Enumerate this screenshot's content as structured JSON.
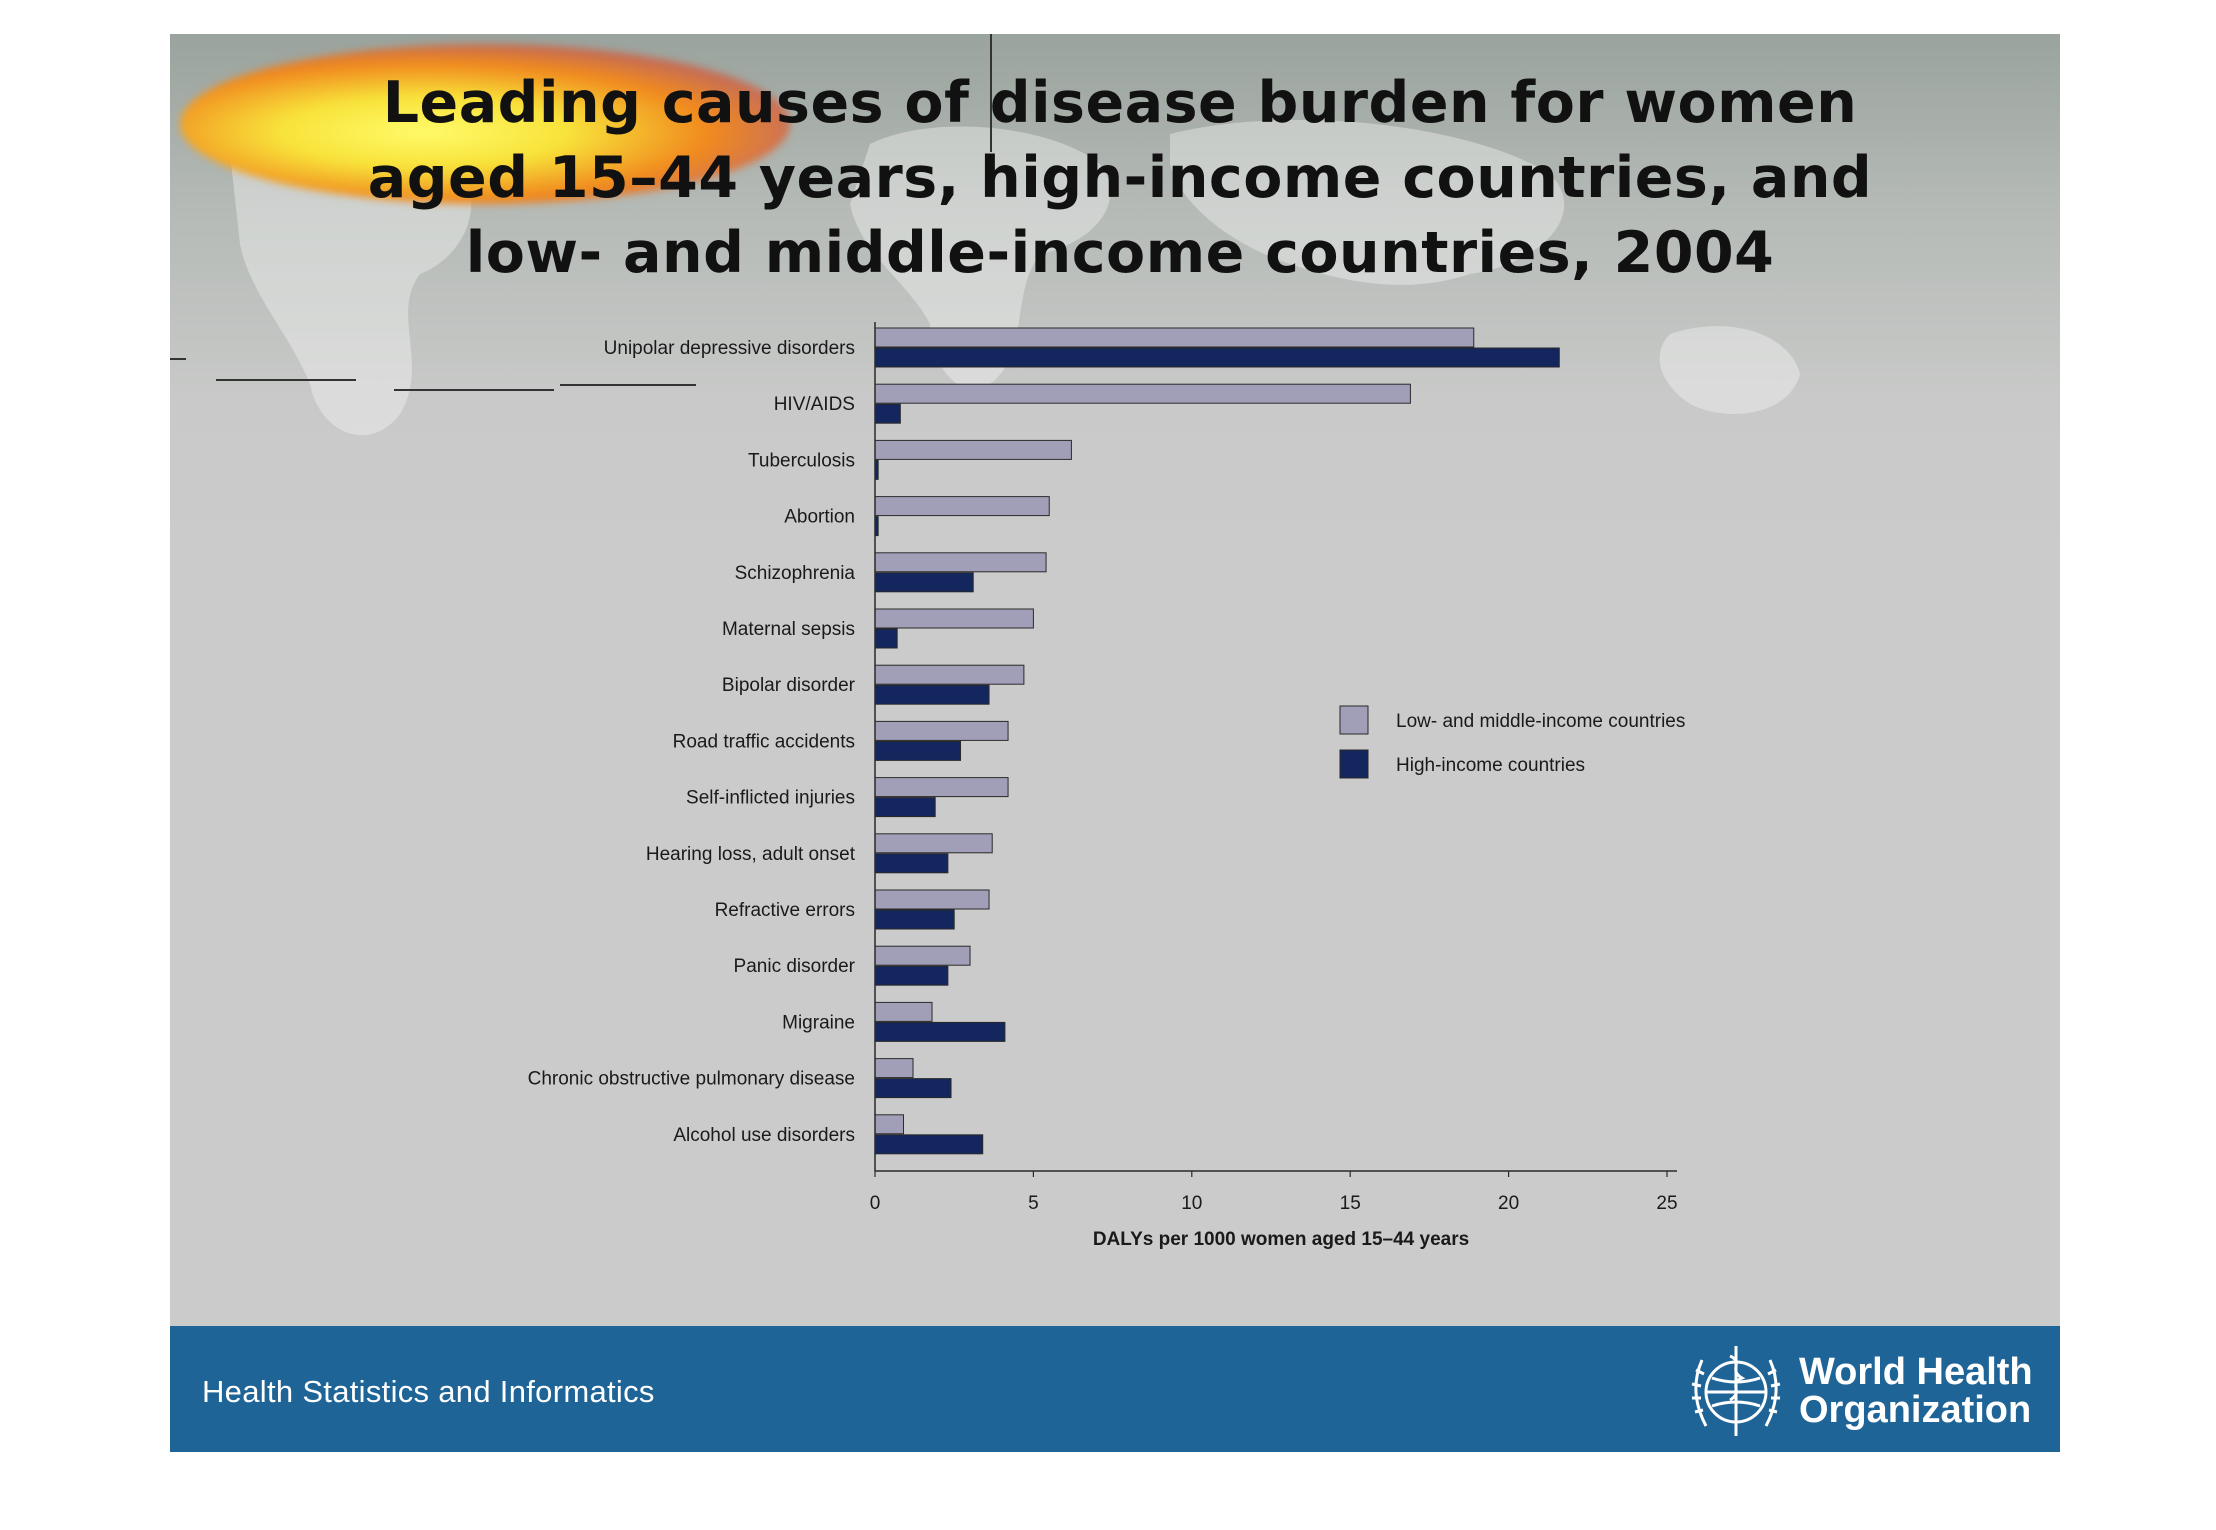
{
  "slide": {
    "title": "Leading causes of disease burden for women aged 15–44 years, high-income countries, and low- and middle-income countries, 2004",
    "footer_text": "Health Statistics and Informatics",
    "logo_line1": "World Health",
    "logo_line2": "Organization"
  },
  "colors": {
    "low_middle_bar": "#a19fb8",
    "high_bar": "#13265e",
    "footer": "#1f6496"
  },
  "chart_data": {
    "type": "bar",
    "orientation": "horizontal",
    "title": "Leading causes of disease burden for women aged 15–44 years, high-income countries, and low- and middle-income countries, 2004",
    "xlabel": "DALYs per 1000 women aged 15–44 years",
    "ylabel": "",
    "xlim": [
      0,
      25
    ],
    "xticks": [
      "0",
      "5",
      "10",
      "15",
      "20",
      "25"
    ],
    "grid": false,
    "legend_position": "right",
    "categories": [
      "Unipolar depressive disorders",
      "HIV/AIDS",
      "Tuberculosis",
      "Abortion",
      "Schizophrenia",
      "Maternal sepsis",
      "Bipolar disorder",
      "Road traffic accidents",
      "Self-inflicted injuries",
      "Hearing loss, adult onset",
      "Refractive errors",
      "Panic disorder",
      "Migraine",
      "Chronic obstructive pulmonary disease",
      "Alcohol use disorders"
    ],
    "series": [
      {
        "name": "Low- and middle-income countries",
        "color": "#a19fb8",
        "values": [
          18.9,
          16.9,
          6.2,
          5.5,
          5.4,
          5.0,
          4.7,
          4.2,
          4.2,
          3.7,
          3.6,
          3.0,
          1.8,
          1.2,
          0.9
        ]
      },
      {
        "name": "High-income countries",
        "color": "#13265e",
        "values": [
          21.6,
          0.8,
          0.1,
          0.1,
          3.1,
          0.7,
          3.6,
          2.7,
          1.9,
          2.3,
          2.5,
          2.3,
          4.1,
          2.4,
          3.4
        ]
      }
    ]
  }
}
